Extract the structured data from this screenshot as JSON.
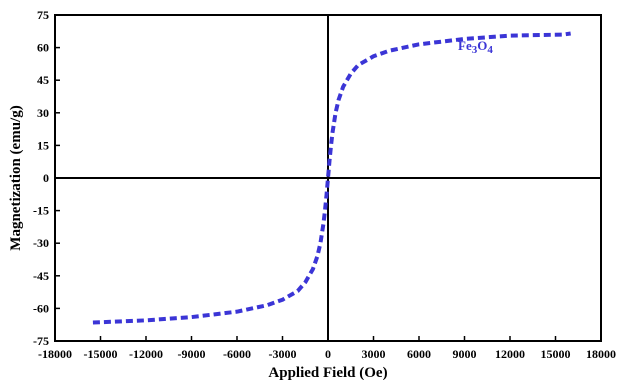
{
  "chart_data": {
    "type": "line",
    "xlabel": "Applied Field (Oe)",
    "ylabel": "Magnetization (emu/g)",
    "xlim": [
      -18000,
      18000
    ],
    "ylim": [
      -75,
      75
    ],
    "xticks": [
      -18000,
      -15000,
      -12000,
      -9000,
      -6000,
      -3000,
      0,
      3000,
      6000,
      9000,
      12000,
      15000,
      18000
    ],
    "yticks": [
      -75,
      -60,
      -45,
      -30,
      -15,
      0,
      15,
      30,
      45,
      60,
      75
    ],
    "xtick_labels": [
      "-18000",
      "-15000",
      "-12000",
      "-9000",
      "-6000",
      "-3000",
      "0",
      "3000",
      "6000",
      "9000",
      "12000",
      "15000",
      "18000"
    ],
    "ytick_labels": [
      "-75",
      "-60",
      "-45",
      "-30",
      "-15",
      "0",
      "15",
      "30",
      "45",
      "60",
      "75"
    ],
    "grid": false,
    "series": [
      {
        "name": "Fe3O4",
        "color": "#3b35d6",
        "line_style": "dashed",
        "x": [
          -15500,
          -12000,
          -9000,
          -6000,
          -4000,
          -3000,
          -2000,
          -1500,
          -1000,
          -700,
          -500,
          -300,
          -200,
          -100,
          0,
          100,
          200,
          300,
          500,
          700,
          1000,
          1500,
          2000,
          3000,
          4000,
          6000,
          9000,
          12000,
          15500,
          16000
        ],
        "y": [
          -66.5,
          -65.5,
          -64,
          -61.5,
          -58.5,
          -56,
          -52,
          -48,
          -42,
          -36,
          -30,
          -21,
          -15,
          -8,
          0,
          8,
          15,
          21,
          30,
          36,
          42,
          48,
          52,
          56,
          58.5,
          61.5,
          64,
          65.5,
          66,
          66.5
        ]
      }
    ],
    "legend": {
      "label_parts": [
        "Fe",
        "3",
        "O",
        "4"
      ],
      "placement": "top-right"
    }
  }
}
